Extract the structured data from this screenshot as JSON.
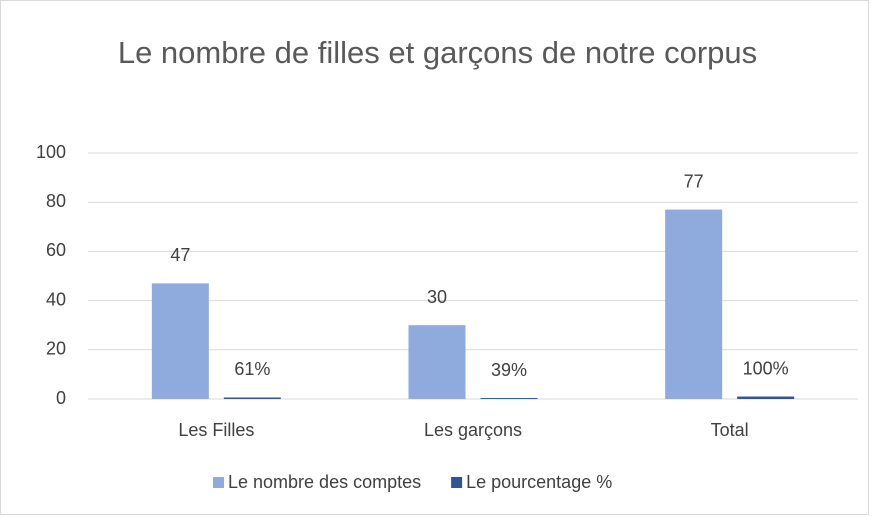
{
  "chart_data": {
    "type": "bar",
    "title": "Le nombre de filles et garçons de notre corpus",
    "categories": [
      "Les Filles",
      "Les garçons",
      "Total"
    ],
    "series": [
      {
        "name": "Le nombre des comptes",
        "color": "#8faadc",
        "values": [
          47,
          30,
          77
        ]
      },
      {
        "name": "Le pourcentage %",
        "color": "#2f5597",
        "values": [
          0.61,
          0.39,
          1
        ],
        "value_labels": [
          "61%",
          "39%",
          "100%"
        ]
      }
    ],
    "ylim": [
      0,
      100
    ],
    "yticks": [
      0,
      20,
      40,
      60,
      80,
      100
    ],
    "grid": true,
    "legend": "bottom"
  }
}
